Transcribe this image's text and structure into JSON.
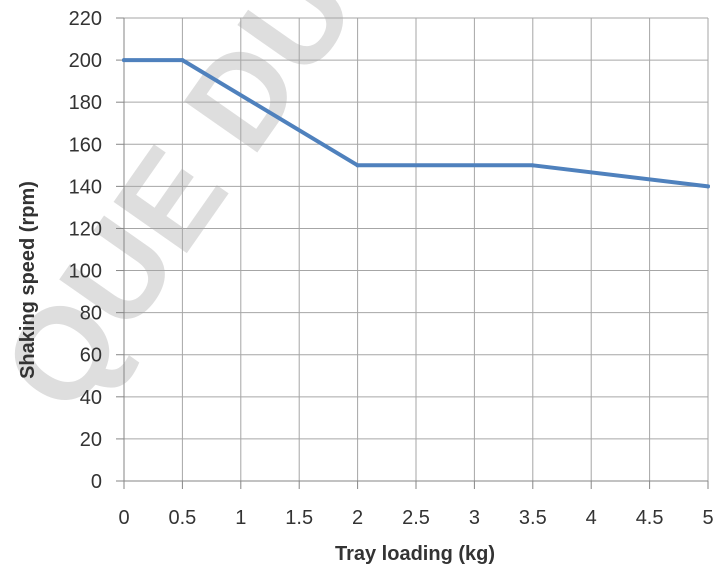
{
  "chart_data": {
    "type": "line",
    "title": "",
    "xlabel": "Tray loading (kg)",
    "ylabel": "Shaking speed (rpm)",
    "xlim": [
      0,
      5
    ],
    "ylim": [
      0,
      220
    ],
    "x_ticks": [
      "0",
      "0.5",
      "1",
      "1.5",
      "2",
      "2.5",
      "3",
      "3.5",
      "4",
      "4.5",
      "5"
    ],
    "y_ticks": [
      "0",
      "20",
      "40",
      "60",
      "80",
      "100",
      "120",
      "140",
      "160",
      "180",
      "200",
      "220"
    ],
    "grid": true,
    "legend": "none",
    "series": [
      {
        "color": "#4f81bd",
        "x": [
          0,
          0.5,
          2,
          3.5,
          5
        ],
        "y": [
          200,
          200,
          150,
          150,
          140
        ]
      }
    ]
  },
  "watermark": "QUE DU",
  "colors": {
    "grid": "#a6a6a6",
    "axis": "#868686",
    "watermark": "#d9d9d9"
  }
}
